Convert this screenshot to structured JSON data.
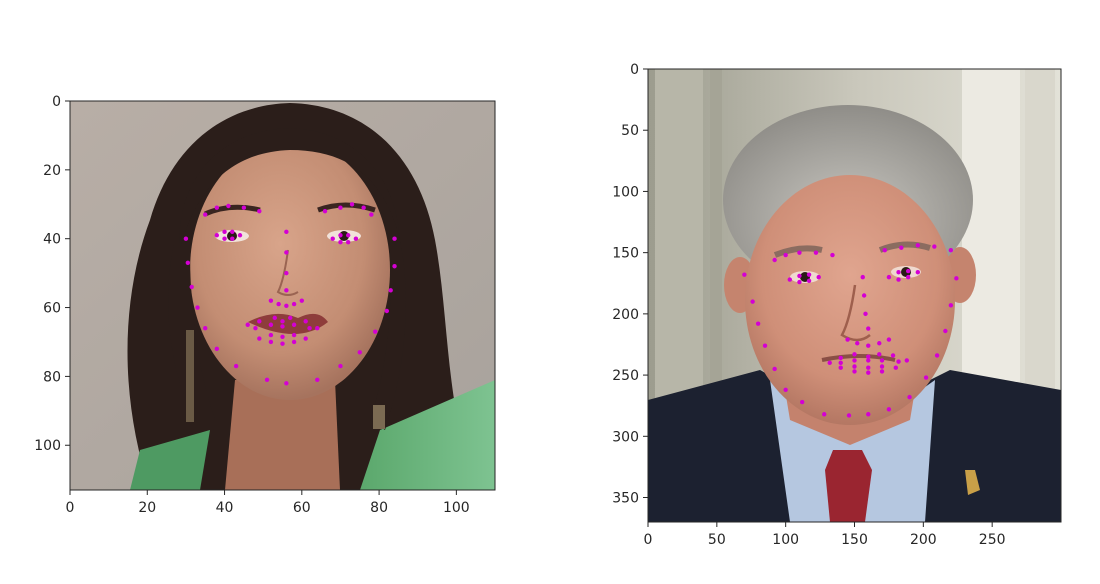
{
  "figure": {
    "background": "#ffffff",
    "landmark_color": "#d400d4",
    "axis_color": "#262626"
  },
  "chart_data": [
    {
      "type": "scatter",
      "title": "",
      "xlabel": "",
      "ylabel": "",
      "xlim": [
        0,
        110
      ],
      "ylim": [
        113,
        0
      ],
      "y_inverted": true,
      "grid": false,
      "legend": "none",
      "background_image": "face photo - young woman with long dark hair",
      "x_ticks": [
        0,
        20,
        40,
        60,
        80,
        100
      ],
      "y_ticks": [
        0,
        20,
        40,
        60,
        80,
        100
      ],
      "series": [
        {
          "x": [
            30,
            30.5,
            31.5,
            33,
            35,
            38,
            43,
            51,
            56,
            64,
            70,
            75,
            79,
            82,
            83,
            84,
            84,
            35,
            38,
            41,
            45,
            49,
            66,
            70,
            73,
            76,
            78,
            56,
            56,
            56,
            56,
            52,
            54,
            56,
            58,
            60,
            38,
            40,
            42,
            44,
            42,
            40,
            68,
            70,
            72,
            74,
            72,
            70,
            46,
            49,
            53,
            55,
            57,
            61,
            64,
            61,
            58,
            55,
            52,
            49,
            48,
            52,
            55,
            58,
            62,
            58,
            55,
            52
          ],
          "y": [
            40,
            47,
            54,
            60,
            66,
            72,
            77,
            81,
            82,
            81,
            77,
            73,
            67,
            61,
            55,
            48,
            40,
            33,
            31,
            30.5,
            31,
            32,
            32,
            31,
            30,
            31,
            33,
            38,
            44,
            50,
            55,
            58,
            59,
            59.5,
            59,
            58,
            39,
            38,
            38,
            39,
            40,
            40,
            40,
            39,
            39,
            40,
            41,
            41,
            65,
            64,
            63,
            64,
            63,
            64,
            66,
            69,
            70,
            70.5,
            70,
            69,
            66,
            65,
            65.5,
            65,
            66,
            68,
            68.5,
            68
          ]
        }
      ]
    },
    {
      "type": "scatter",
      "title": "",
      "xlabel": "",
      "ylabel": "",
      "xlim": [
        0,
        300
      ],
      "ylim": [
        370,
        0
      ],
      "y_inverted": true,
      "grid": false,
      "legend": "none",
      "background_image": "face photo - older man with gray hair in dark suit and red tie",
      "x_ticks": [
        0,
        50,
        100,
        150,
        200,
        250
      ],
      "y_ticks": [
        0,
        50,
        100,
        150,
        200,
        250,
        300,
        350
      ],
      "series": [
        {
          "x": [
            70,
            76,
            80,
            85,
            92,
            100,
            112,
            128,
            146,
            160,
            175,
            190,
            202,
            210,
            216,
            220,
            224,
            92,
            100,
            110,
            122,
            134,
            172,
            184,
            196,
            208,
            220,
            156,
            157,
            158,
            160,
            145,
            152,
            160,
            168,
            175,
            103,
            110,
            117,
            124,
            117,
            110,
            175,
            182,
            189,
            196,
            189,
            182,
            132,
            140,
            150,
            160,
            168,
            178,
            188,
            180,
            170,
            160,
            150,
            140,
            140,
            150,
            160,
            170,
            182,
            170,
            160,
            150
          ],
          "y": [
            168,
            190,
            208,
            226,
            245,
            262,
            272,
            282,
            283,
            282,
            278,
            268,
            252,
            234,
            214,
            193,
            171,
            156,
            152,
            150,
            150,
            152,
            148,
            146,
            144,
            145,
            148,
            170,
            185,
            200,
            212,
            221,
            224,
            226,
            224,
            221,
            172,
            169,
            168,
            170,
            173,
            174,
            170,
            166,
            165,
            166,
            170,
            172,
            240,
            236,
            233,
            235,
            233,
            234,
            238,
            244,
            247,
            248,
            247,
            244,
            240,
            238,
            238,
            238,
            239,
            243,
            244,
            243
          ]
        }
      ]
    }
  ]
}
